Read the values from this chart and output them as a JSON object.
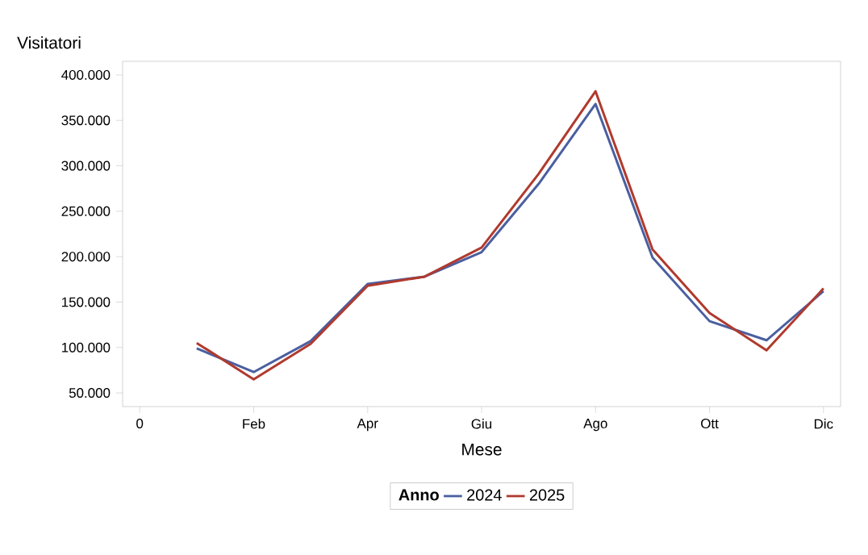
{
  "chart_data": {
    "type": "line",
    "ylabel": "Visitatori",
    "xlabel": "Mese",
    "legend_title": "Anno",
    "legend": "bottom",
    "categories": [
      "0",
      null,
      "Feb",
      null,
      "Apr",
      null,
      "Giu",
      null,
      "Ago",
      null,
      "Ott",
      null,
      "Dic"
    ],
    "series": [
      {
        "name": "2024",
        "color": "#4a5fa0",
        "values": [
          null,
          99000,
          73000,
          107000,
          170000,
          178000,
          205000,
          280000,
          368000,
          199000,
          129000,
          108000,
          162000
        ]
      },
      {
        "name": "2025",
        "color": "#b03a2e",
        "values": [
          null,
          105000,
          65000,
          104000,
          168000,
          178000,
          210000,
          291000,
          382000,
          208000,
          138000,
          97000,
          165000
        ]
      }
    ],
    "ylim": [
      35000,
      415000
    ],
    "yticks": [
      {
        "value": 50000,
        "label": "50.000"
      },
      {
        "value": 100000,
        "label": "100.000"
      },
      {
        "value": 150000,
        "label": "150.000"
      },
      {
        "value": 200000,
        "label": "200.000"
      },
      {
        "value": 250000,
        "label": "250.000"
      },
      {
        "value": 300000,
        "label": "300.000"
      },
      {
        "value": 350000,
        "label": "350.000"
      },
      {
        "value": 400000,
        "label": "400.000"
      }
    ]
  }
}
